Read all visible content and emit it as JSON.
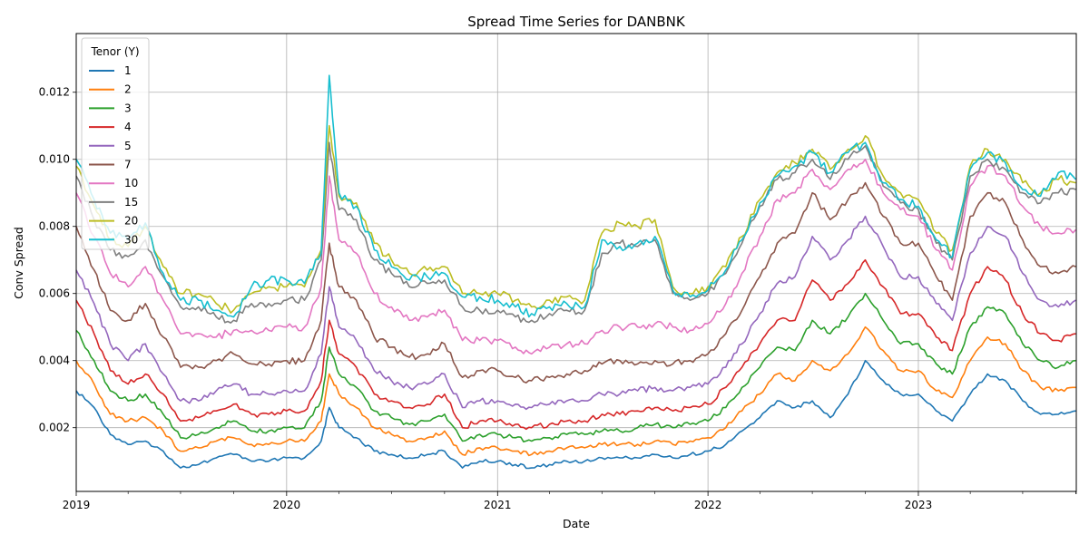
{
  "chart_data": {
    "type": "line",
    "title": "Spread Time Series for DANBNK",
    "xlabel": "Date",
    "ylabel": "Conv Spread",
    "legend_title": "Tenor (Y)",
    "legend_position": "top-left",
    "grid": true,
    "xlim": [
      "2019-01-01",
      "2023-10-02"
    ],
    "ylim": [
      0.0001,
      0.01375
    ],
    "x_ticks": [
      "2019",
      "2020",
      "2021",
      "2022",
      "2023"
    ],
    "y_ticks": [
      "0.002",
      "0.004",
      "0.006",
      "0.008",
      "0.010",
      "0.012"
    ],
    "x": [
      "2019-01-01",
      "2019-02-01",
      "2019-03-01",
      "2019-04-01",
      "2019-05-01",
      "2019-06-01",
      "2019-07-01",
      "2019-08-01",
      "2019-09-01",
      "2019-10-01",
      "2019-11-01",
      "2019-12-01",
      "2020-01-01",
      "2020-02-01",
      "2020-03-01",
      "2020-03-15",
      "2020-04-01",
      "2020-05-01",
      "2020-06-01",
      "2020-07-01",
      "2020-08-01",
      "2020-09-01",
      "2020-10-01",
      "2020-11-01",
      "2020-12-01",
      "2021-01-01",
      "2021-02-01",
      "2021-03-01",
      "2021-04-01",
      "2021-05-01",
      "2021-06-01",
      "2021-07-01",
      "2021-08-01",
      "2021-09-01",
      "2021-10-01",
      "2021-11-01",
      "2021-12-01",
      "2022-01-01",
      "2022-02-01",
      "2022-03-01",
      "2022-04-01",
      "2022-05-01",
      "2022-06-01",
      "2022-07-01",
      "2022-08-01",
      "2022-09-01",
      "2022-10-01",
      "2022-11-01",
      "2022-12-01",
      "2023-01-01",
      "2023-02-01",
      "2023-03-01",
      "2023-04-01",
      "2023-05-01",
      "2023-06-01",
      "2023-07-01",
      "2023-08-01",
      "2023-09-01",
      "2023-10-01"
    ],
    "series": [
      {
        "name": "1",
        "color": "#1f77b4",
        "values": [
          0.0031,
          0.0026,
          0.0018,
          0.0015,
          0.0016,
          0.0013,
          0.0008,
          0.0009,
          0.0011,
          0.0012,
          0.001,
          0.001,
          0.0011,
          0.0011,
          0.0016,
          0.0026,
          0.002,
          0.0017,
          0.0013,
          0.0012,
          0.0011,
          0.0012,
          0.0013,
          0.0008,
          0.001,
          0.001,
          0.0009,
          0.0008,
          0.0009,
          0.001,
          0.001,
          0.0011,
          0.0011,
          0.0011,
          0.0012,
          0.0011,
          0.0012,
          0.0013,
          0.0015,
          0.0019,
          0.0023,
          0.0028,
          0.0026,
          0.0028,
          0.0023,
          0.003,
          0.004,
          0.0034,
          0.003,
          0.003,
          0.0025,
          0.0022,
          0.003,
          0.0036,
          0.0034,
          0.0028,
          0.0024,
          0.0024,
          0.0025
        ]
      },
      {
        "name": "2",
        "color": "#ff7f0e",
        "values": [
          0.004,
          0.0033,
          0.0024,
          0.0022,
          0.0023,
          0.0019,
          0.0013,
          0.0014,
          0.0016,
          0.0017,
          0.0015,
          0.0015,
          0.0016,
          0.0016,
          0.0022,
          0.0036,
          0.003,
          0.0026,
          0.002,
          0.0018,
          0.0016,
          0.0017,
          0.0019,
          0.0012,
          0.0014,
          0.0014,
          0.0013,
          0.0012,
          0.0013,
          0.0014,
          0.0014,
          0.0015,
          0.0015,
          0.0015,
          0.0016,
          0.0015,
          0.0016,
          0.0017,
          0.002,
          0.0025,
          0.003,
          0.0036,
          0.0034,
          0.004,
          0.0037,
          0.0042,
          0.005,
          0.0043,
          0.0037,
          0.0037,
          0.0031,
          0.0029,
          0.004,
          0.0047,
          0.0045,
          0.0037,
          0.0032,
          0.0031,
          0.0032
        ]
      },
      {
        "name": "3",
        "color": "#2ca02c",
        "values": [
          0.0049,
          0.004,
          0.0031,
          0.0028,
          0.003,
          0.0024,
          0.0017,
          0.0018,
          0.002,
          0.0022,
          0.0019,
          0.0019,
          0.002,
          0.002,
          0.0028,
          0.0044,
          0.0036,
          0.0032,
          0.0025,
          0.0023,
          0.0021,
          0.0022,
          0.0024,
          0.0016,
          0.0018,
          0.0018,
          0.0017,
          0.0016,
          0.0017,
          0.0018,
          0.0018,
          0.0019,
          0.0019,
          0.002,
          0.0021,
          0.002,
          0.0021,
          0.0022,
          0.0026,
          0.0032,
          0.0038,
          0.0044,
          0.0043,
          0.0052,
          0.0048,
          0.0053,
          0.006,
          0.0052,
          0.0045,
          0.0045,
          0.0039,
          0.0036,
          0.005,
          0.0056,
          0.0054,
          0.0045,
          0.004,
          0.0038,
          0.004
        ]
      },
      {
        "name": "4",
        "color": "#d62728",
        "values": [
          0.0058,
          0.0048,
          0.0037,
          0.0033,
          0.0036,
          0.003,
          0.0022,
          0.0023,
          0.0025,
          0.0027,
          0.0024,
          0.0024,
          0.0025,
          0.0025,
          0.0034,
          0.0052,
          0.0042,
          0.0038,
          0.003,
          0.0028,
          0.0026,
          0.0027,
          0.003,
          0.002,
          0.0022,
          0.0022,
          0.0021,
          0.002,
          0.0021,
          0.0022,
          0.0022,
          0.0024,
          0.0024,
          0.0025,
          0.0026,
          0.0025,
          0.0026,
          0.0027,
          0.0032,
          0.0038,
          0.0045,
          0.0052,
          0.0052,
          0.0064,
          0.0058,
          0.0063,
          0.007,
          0.0062,
          0.0054,
          0.0054,
          0.0047,
          0.0043,
          0.006,
          0.0068,
          0.0064,
          0.0054,
          0.0048,
          0.0046,
          0.0048
        ]
      },
      {
        "name": "5",
        "color": "#9467bd",
        "values": [
          0.0067,
          0.0057,
          0.0045,
          0.004,
          0.0045,
          0.0036,
          0.0028,
          0.0028,
          0.0031,
          0.0033,
          0.003,
          0.003,
          0.0031,
          0.0031,
          0.0042,
          0.0062,
          0.005,
          0.0046,
          0.0037,
          0.0034,
          0.0032,
          0.0033,
          0.0036,
          0.0026,
          0.0028,
          0.0028,
          0.0027,
          0.0026,
          0.0027,
          0.0028,
          0.0028,
          0.003,
          0.003,
          0.0031,
          0.0032,
          0.0031,
          0.0032,
          0.0033,
          0.0038,
          0.0045,
          0.0054,
          0.0063,
          0.0065,
          0.0077,
          0.007,
          0.0076,
          0.0083,
          0.0074,
          0.0065,
          0.0065,
          0.0057,
          0.0052,
          0.0072,
          0.008,
          0.0077,
          0.0066,
          0.0058,
          0.0056,
          0.0058
        ]
      },
      {
        "name": "7",
        "color": "#8c564b",
        "values": [
          0.008,
          0.0067,
          0.0055,
          0.0052,
          0.0057,
          0.0047,
          0.0038,
          0.0038,
          0.004,
          0.0042,
          0.0039,
          0.0039,
          0.004,
          0.004,
          0.0052,
          0.0075,
          0.0062,
          0.0058,
          0.0047,
          0.0044,
          0.0041,
          0.0042,
          0.0045,
          0.0035,
          0.0037,
          0.0037,
          0.0035,
          0.0034,
          0.0035,
          0.0036,
          0.0037,
          0.0039,
          0.004,
          0.0039,
          0.004,
          0.0039,
          0.004,
          0.0042,
          0.0048,
          0.0055,
          0.0065,
          0.0075,
          0.0078,
          0.009,
          0.0082,
          0.0088,
          0.0093,
          0.0083,
          0.0075,
          0.0075,
          0.0065,
          0.0058,
          0.0083,
          0.009,
          0.0087,
          0.0076,
          0.0068,
          0.0066,
          0.0068
        ]
      },
      {
        "name": "10",
        "color": "#e377c2",
        "values": [
          0.009,
          0.0077,
          0.0066,
          0.0062,
          0.0068,
          0.0058,
          0.0048,
          0.0048,
          0.0047,
          0.0049,
          0.0049,
          0.0049,
          0.005,
          0.005,
          0.0062,
          0.0095,
          0.0076,
          0.0072,
          0.006,
          0.0056,
          0.0052,
          0.0053,
          0.0055,
          0.0046,
          0.0046,
          0.0046,
          0.0044,
          0.0042,
          0.0044,
          0.0045,
          0.0045,
          0.0049,
          0.005,
          0.005,
          0.0051,
          0.005,
          0.0049,
          0.0051,
          0.0057,
          0.0066,
          0.0077,
          0.0088,
          0.009,
          0.0097,
          0.0091,
          0.0097,
          0.01,
          0.009,
          0.0085,
          0.0083,
          0.0073,
          0.0067,
          0.0092,
          0.0098,
          0.0095,
          0.0086,
          0.008,
          0.0078,
          0.0079
        ]
      },
      {
        "name": "15",
        "color": "#7f7f7f",
        "values": [
          0.0095,
          0.0082,
          0.0073,
          0.0071,
          0.0076,
          0.0065,
          0.0056,
          0.0056,
          0.0053,
          0.0052,
          0.0057,
          0.0057,
          0.0058,
          0.0058,
          0.007,
          0.0105,
          0.0085,
          0.0082,
          0.007,
          0.0066,
          0.0062,
          0.0063,
          0.0064,
          0.0056,
          0.0055,
          0.0055,
          0.0053,
          0.0052,
          0.0054,
          0.0055,
          0.0055,
          0.0072,
          0.0075,
          0.0074,
          0.0076,
          0.006,
          0.0058,
          0.006,
          0.0066,
          0.0075,
          0.0086,
          0.0094,
          0.0096,
          0.01,
          0.0094,
          0.01,
          0.0104,
          0.0092,
          0.0087,
          0.0085,
          0.0075,
          0.007,
          0.0095,
          0.01,
          0.0097,
          0.009,
          0.0087,
          0.009,
          0.0091
        ]
      },
      {
        "name": "20",
        "color": "#bcbd22",
        "values": [
          0.0098,
          0.0086,
          0.0076,
          0.0074,
          0.008,
          0.0068,
          0.006,
          0.006,
          0.0057,
          0.0055,
          0.006,
          0.0062,
          0.0062,
          0.0062,
          0.0073,
          0.011,
          0.0089,
          0.0087,
          0.0075,
          0.007,
          0.0066,
          0.0067,
          0.0068,
          0.006,
          0.006,
          0.006,
          0.0058,
          0.0056,
          0.0058,
          0.0059,
          0.0058,
          0.0078,
          0.0081,
          0.008,
          0.0082,
          0.0062,
          0.006,
          0.0062,
          0.0068,
          0.0077,
          0.0088,
          0.0096,
          0.0099,
          0.0103,
          0.0097,
          0.0103,
          0.0107,
          0.0095,
          0.009,
          0.0088,
          0.0078,
          0.0073,
          0.0098,
          0.0103,
          0.01,
          0.0093,
          0.009,
          0.0094,
          0.0093
        ]
      },
      {
        "name": "30",
        "color": "#17becf",
        "values": [
          0.01,
          0.0088,
          0.0078,
          0.0076,
          0.0081,
          0.0066,
          0.0058,
          0.0058,
          0.0055,
          0.0053,
          0.0062,
          0.0064,
          0.0064,
          0.0063,
          0.0072,
          0.0125,
          0.009,
          0.0086,
          0.0073,
          0.0068,
          0.0064,
          0.0065,
          0.0066,
          0.0059,
          0.0059,
          0.0058,
          0.0056,
          0.0054,
          0.0056,
          0.0057,
          0.0056,
          0.0076,
          0.0074,
          0.0075,
          0.0077,
          0.0061,
          0.0059,
          0.0061,
          0.0067,
          0.0076,
          0.0087,
          0.0095,
          0.0098,
          0.0102,
          0.0096,
          0.0102,
          0.0105,
          0.0093,
          0.0088,
          0.0086,
          0.0076,
          0.0071,
          0.0097,
          0.0102,
          0.0099,
          0.0091,
          0.0089,
          0.0096,
          0.0094
        ]
      }
    ]
  }
}
